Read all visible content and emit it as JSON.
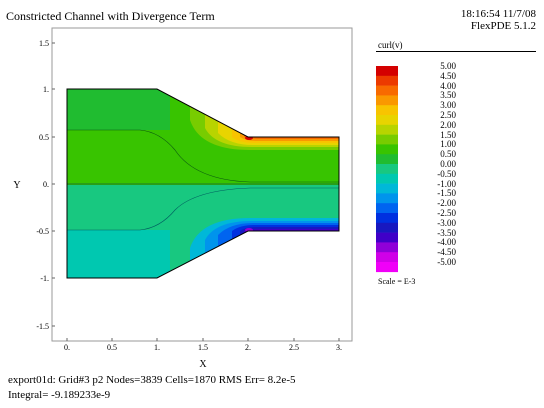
{
  "header": {
    "title": "Constricted Channel with Divergence Term",
    "time": "18:16:54 11/7/08",
    "software": "FlexPDE 5.1.2"
  },
  "plot": {
    "xlabel": "X",
    "ylabel": "Y",
    "x_ticks": [
      "0.",
      "0.5",
      "1.",
      "1.5",
      "2.",
      "2.5",
      "3."
    ],
    "y_ticks": [
      "1.5",
      "1.",
      "0.5",
      "0.",
      "-0.5",
      "-1.",
      "-1.5"
    ]
  },
  "legend": {
    "title": "curl(v)",
    "levels": [
      "5.00",
      "4.50",
      "4.00",
      "3.50",
      "3.00",
      "2.50",
      "2.00",
      "1.50",
      "1.00",
      "0.50",
      "0.00",
      "-0.50",
      "-1.00",
      "-1.50",
      "-2.00",
      "-2.50",
      "-3.00",
      "-3.50",
      "-4.00",
      "-4.50",
      "-5.00"
    ],
    "colors": [
      "#d40000",
      "#ec3a00",
      "#f86a00",
      "#fa9800",
      "#f8c400",
      "#e8d400",
      "#b8d400",
      "#78cc00",
      "#38c400",
      "#20bc30",
      "#18c880",
      "#00c8b0",
      "#00b8d8",
      "#0094ec",
      "#0064f0",
      "#0030e0",
      "#1818c0",
      "#4000c8",
      "#9000d8",
      "#d000e8",
      "#f000f8"
    ],
    "scale": "Scale = E-3"
  },
  "footer": {
    "line1": "export01d:  Grid#3  p2  Nodes=3839 Cells=1870 RMS Err= 8.2e-5",
    "line2": "Integral= -9.189233e-9"
  }
}
